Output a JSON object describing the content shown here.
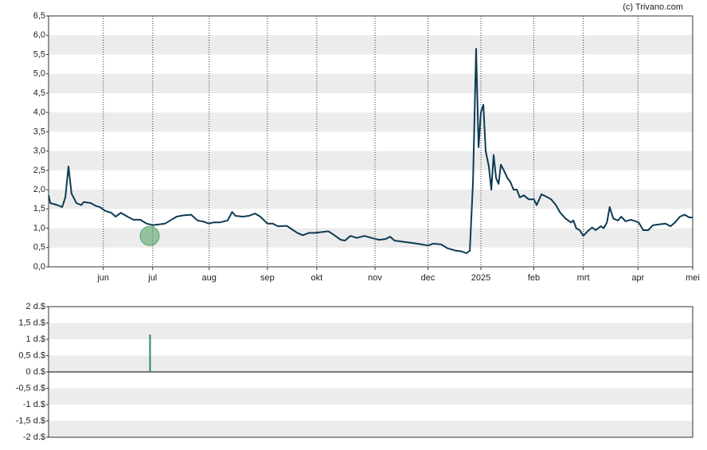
{
  "chart_data": [
    {
      "type": "line",
      "source": "(c) Trivano.com",
      "grid": "bands",
      "xlim": [
        0,
        365
      ],
      "xticks": [
        {
          "value": 31,
          "label": "jun"
        },
        {
          "value": 59,
          "label": "jul"
        },
        {
          "value": 91,
          "label": "aug"
        },
        {
          "value": 124,
          "label": "sep"
        },
        {
          "value": 152,
          "label": "okt"
        },
        {
          "value": 185,
          "label": "nov"
        },
        {
          "value": 215,
          "label": "dec"
        },
        {
          "value": 245,
          "label": "2025"
        },
        {
          "value": 275,
          "label": "feb"
        },
        {
          "value": 303,
          "label": "mrt"
        },
        {
          "value": 334,
          "label": "apr"
        },
        {
          "value": 365,
          "label": "mei"
        }
      ],
      "ylim": [
        0,
        6.5
      ],
      "yticks": [
        {
          "value": 0,
          "label": "0,0"
        },
        {
          "value": 0.5,
          "label": "0,5"
        },
        {
          "value": 1,
          "label": "1,0"
        },
        {
          "value": 1.5,
          "label": "1,5"
        },
        {
          "value": 2,
          "label": "2,0"
        },
        {
          "value": 2.5,
          "label": "2,5"
        },
        {
          "value": 3,
          "label": "3,0"
        },
        {
          "value": 3.5,
          "label": "3,5"
        },
        {
          "value": 4,
          "label": "4,0"
        },
        {
          "value": 4.5,
          "label": "4,5"
        },
        {
          "value": 5,
          "label": "5,0"
        },
        {
          "value": 5.5,
          "label": "5,5"
        },
        {
          "value": 6,
          "label": "6,0"
        },
        {
          "value": 6.5,
          "label": "6,5"
        }
      ],
      "series": [
        {
          "color": "#0d3b52",
          "x": [
            0,
            1,
            5,
            7.7,
            9.5,
            11.3,
            13,
            15.8,
            18.5,
            20,
            24,
            26.6,
            29,
            32,
            35.6,
            38,
            41,
            44.7,
            48,
            52,
            55.5,
            59,
            62.6,
            66,
            69,
            72.6,
            76,
            80.8,
            84.4,
            88,
            90.7,
            93.4,
            97,
            101.5,
            104,
            106,
            110,
            113.5,
            117,
            120,
            124,
            127,
            130,
            135,
            137.6,
            141,
            144,
            147.6,
            151,
            155,
            158.5,
            161,
            165.6,
            168,
            171,
            174.6,
            179,
            183,
            187.3,
            191,
            193.6,
            196,
            200.7,
            206,
            211.5,
            215,
            218,
            222.5,
            226,
            230.6,
            234,
            236.8,
            238.7,
            240.5,
            242.3,
            243.7,
            245,
            246.4,
            247.7,
            249.5,
            250.9,
            252.2,
            253.6,
            255,
            256.3,
            258,
            260,
            261.7,
            263.5,
            265.4,
            267,
            269.4,
            272,
            275,
            276.6,
            279.3,
            282,
            284.8,
            287.5,
            290,
            293,
            296,
            297.4,
            299,
            301,
            303,
            305.5,
            308,
            310,
            313,
            314.6,
            316.4,
            318,
            320,
            322.7,
            324.5,
            327,
            330,
            332.6,
            334.4,
            337,
            339.8,
            342.5,
            346,
            349.6,
            352.4,
            355,
            357.8,
            360.5,
            363,
            365
          ],
          "values": [
            1.85,
            1.65,
            1.6,
            1.55,
            1.8,
            2.6,
            1.9,
            1.65,
            1.6,
            1.68,
            1.65,
            1.58,
            1.55,
            1.45,
            1.4,
            1.3,
            1.4,
            1.3,
            1.22,
            1.22,
            1.12,
            1.08,
            1.1,
            1.12,
            1.2,
            1.3,
            1.33,
            1.35,
            1.2,
            1.17,
            1.12,
            1.15,
            1.15,
            1.2,
            1.42,
            1.32,
            1.3,
            1.32,
            1.38,
            1.3,
            1.12,
            1.12,
            1.05,
            1.06,
            0.98,
            0.88,
            0.82,
            0.88,
            0.88,
            0.9,
            0.92,
            0.85,
            0.7,
            0.68,
            0.8,
            0.75,
            0.8,
            0.75,
            0.7,
            0.72,
            0.78,
            0.68,
            0.65,
            0.62,
            0.58,
            0.55,
            0.6,
            0.58,
            0.48,
            0.42,
            0.4,
            0.35,
            0.42,
            2.2,
            5.65,
            3.1,
            4.0,
            4.2,
            3.0,
            2.6,
            2.0,
            2.9,
            2.3,
            2.15,
            2.65,
            2.5,
            2.3,
            2.2,
            2.0,
            2.0,
            1.8,
            1.85,
            1.75,
            1.75,
            1.6,
            1.88,
            1.82,
            1.75,
            1.6,
            1.4,
            1.25,
            1.15,
            1.2,
            1.0,
            0.95,
            0.8,
            0.92,
            1.02,
            0.95,
            1.05,
            1.0,
            1.15,
            1.55,
            1.25,
            1.2,
            1.3,
            1.18,
            1.22,
            1.18,
            1.15,
            0.95,
            0.95,
            1.08,
            1.1,
            1.12,
            1.05,
            1.15,
            1.3,
            1.35,
            1.28,
            1.28
          ],
          "marker": {
            "x": 57.3,
            "value": 0.8,
            "color": "#5aa56a"
          }
        }
      ]
    },
    {
      "type": "bar",
      "grid": "bands",
      "xlim": [
        0,
        365
      ],
      "ylim": [
        -2,
        2
      ],
      "yticks": [
        {
          "value": 2,
          "label": "2 d.$"
        },
        {
          "value": 1.5,
          "label": "1,5 d.$"
        },
        {
          "value": 1,
          "label": "1 d.$"
        },
        {
          "value": 0.5,
          "label": "0,5 d.$"
        },
        {
          "value": 0,
          "label": "0 d.$"
        },
        {
          "value": -0.5,
          "label": "-0,5 d.$"
        },
        {
          "value": -1,
          "label": "-1 d.$"
        },
        {
          "value": -1.5,
          "label": "-1,5 d.$"
        },
        {
          "value": -2,
          "label": "-2 d.$"
        }
      ],
      "x": [
        57.5
      ],
      "values": [
        1.15
      ],
      "color": "#2e8b57"
    }
  ]
}
